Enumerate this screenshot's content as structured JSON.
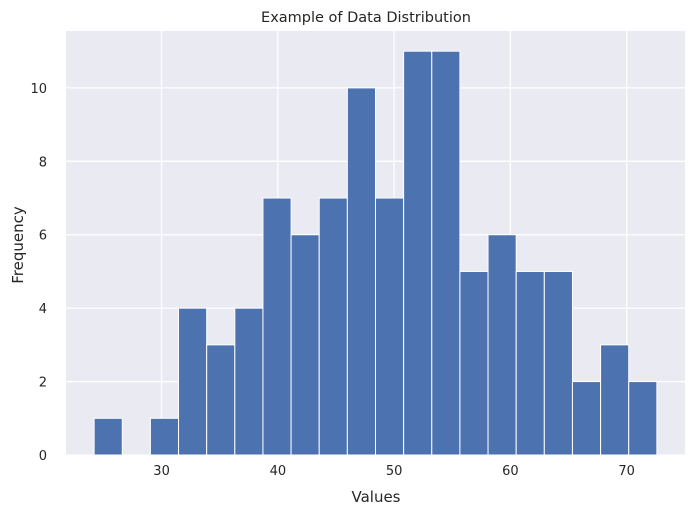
{
  "chart_data": {
    "type": "bar",
    "subtype": "histogram",
    "title": "Example of Data Distribution",
    "xlabel": "Values",
    "ylabel": "Frequency",
    "bin_edges": [
      24.2,
      26.62,
      29.04,
      31.46,
      33.88,
      36.3,
      38.72,
      41.14,
      43.56,
      45.98,
      48.4,
      50.82,
      53.24,
      55.66,
      58.08,
      60.5,
      62.92,
      65.34,
      67.76,
      70.18,
      72.6
    ],
    "values": [
      1,
      0,
      1,
      4,
      3,
      4,
      7,
      6,
      7,
      10,
      7,
      11,
      11,
      5,
      6,
      5,
      5,
      2,
      3,
      2
    ],
    "xlim": [
      21.78,
      75.02
    ],
    "ylim": [
      0,
      11.55
    ],
    "xticks": [
      30,
      40,
      50,
      60,
      70
    ],
    "yticks": [
      0,
      2,
      4,
      6,
      8,
      10
    ],
    "grid": true,
    "colors": {
      "bar": "#4c72b0",
      "bar_edge": "#ffffff",
      "plot_background": "#eaeaf2",
      "grid": "#ffffff",
      "text": "#262626"
    }
  }
}
